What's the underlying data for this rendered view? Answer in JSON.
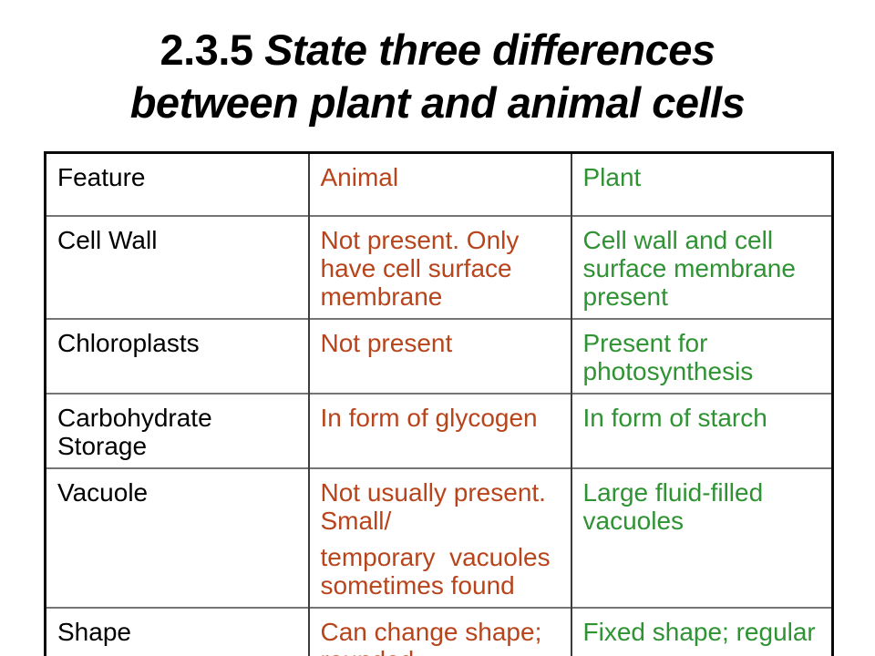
{
  "title": {
    "number": "2.3.5",
    "line1": "State three differences",
    "line2": "between plant and animal cells"
  },
  "colors": {
    "background": "#ffffff",
    "feature": "#000000",
    "animal": "#b8441c",
    "plant": "#2f9233",
    "border_outer": "#0a0a0a",
    "border_inner_horizontal": "#757575",
    "border_inner_vertical": "#3c3c3c"
  },
  "table": {
    "headers": [
      {
        "label": "Feature"
      },
      {
        "label": "Animal"
      },
      {
        "label": "Plant"
      }
    ],
    "rows": [
      {
        "feature": "Cell Wall",
        "animal": [
          "Not present. Only have cell surface membrane"
        ],
        "plant": [
          "Cell wall and cell surface membrane present"
        ]
      },
      {
        "feature": "Chloroplasts",
        "animal": [
          "Not present"
        ],
        "plant": [
          "Present for photosynthesis"
        ]
      },
      {
        "feature": "Carbohydrate Storage",
        "animal": [
          "In form of glycogen"
        ],
        "plant": [
          "In form of starch"
        ]
      },
      {
        "feature": "Vacuole",
        "animal": [
          "Not usually present. Small/",
          "temporary  vacuoles sometimes found"
        ],
        "plant": [
          "Large fluid-filled vacuoles"
        ]
      },
      {
        "feature": "Shape",
        "animal": [
          "Can change shape; rounded"
        ],
        "plant": [
          "Fixed shape; regular"
        ]
      }
    ]
  }
}
